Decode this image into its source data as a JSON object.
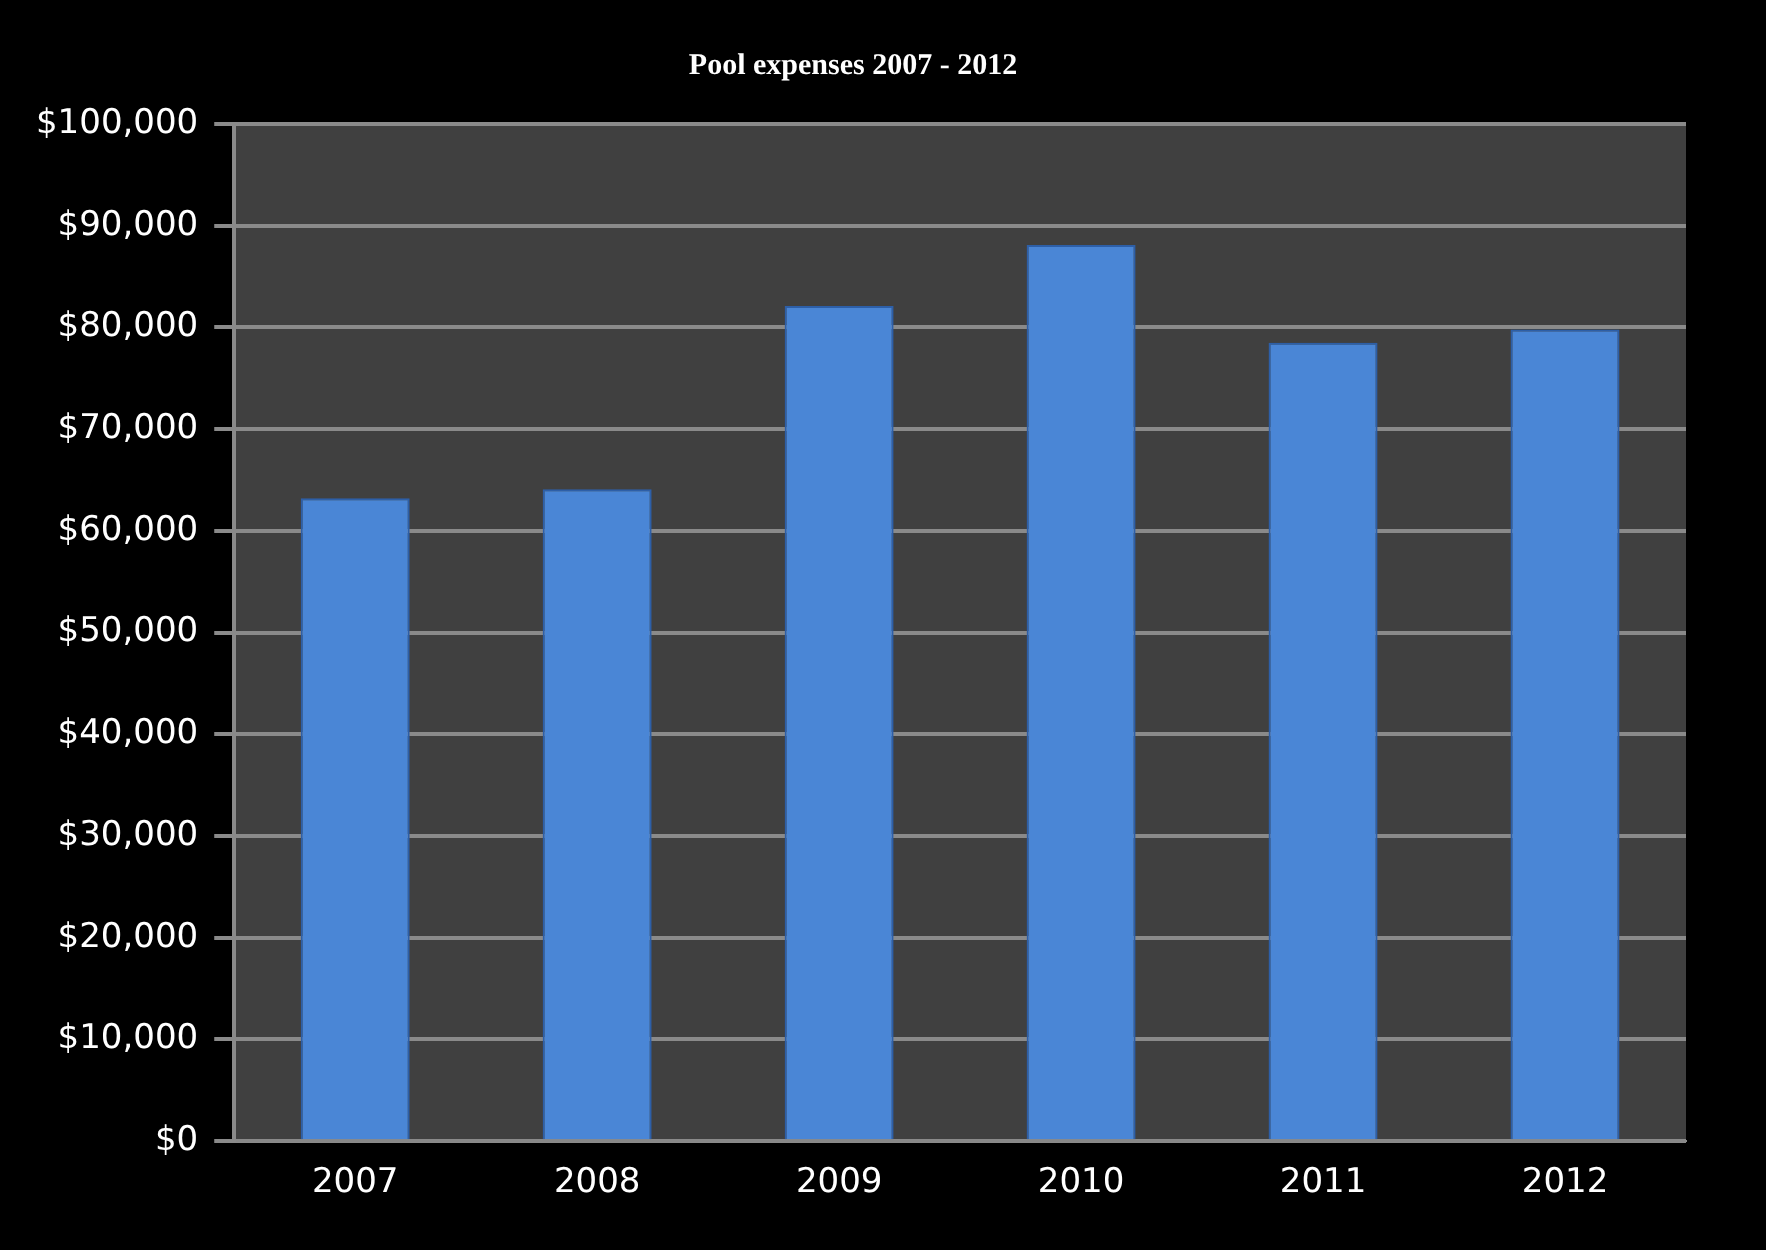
{
  "chart_data": {
    "type": "bar",
    "title": "Pool expenses 2007 - 2012",
    "categories": [
      "2007",
      "2008",
      "2009",
      "2010",
      "2011",
      "2012"
    ],
    "values": [
      63200,
      64100,
      82100,
      88100,
      78500,
      79800
    ],
    "color": "#4a86d6",
    "ylim": [
      0,
      100000
    ],
    "yticks": [
      {
        "value": 0,
        "label": "$0"
      },
      {
        "value": 10000,
        "label": "$10,000"
      },
      {
        "value": 20000,
        "label": "$20,000"
      },
      {
        "value": 30000,
        "label": "$30,000"
      },
      {
        "value": 40000,
        "label": "$40,000"
      },
      {
        "value": 50000,
        "label": "$50,000"
      },
      {
        "value": 60000,
        "label": "$60,000"
      },
      {
        "value": 70000,
        "label": "$70,000"
      },
      {
        "value": 80000,
        "label": "$80,000"
      },
      {
        "value": 90000,
        "label": "$90,000"
      },
      {
        "value": 100000,
        "label": "$100,000"
      }
    ],
    "grid": "y"
  }
}
